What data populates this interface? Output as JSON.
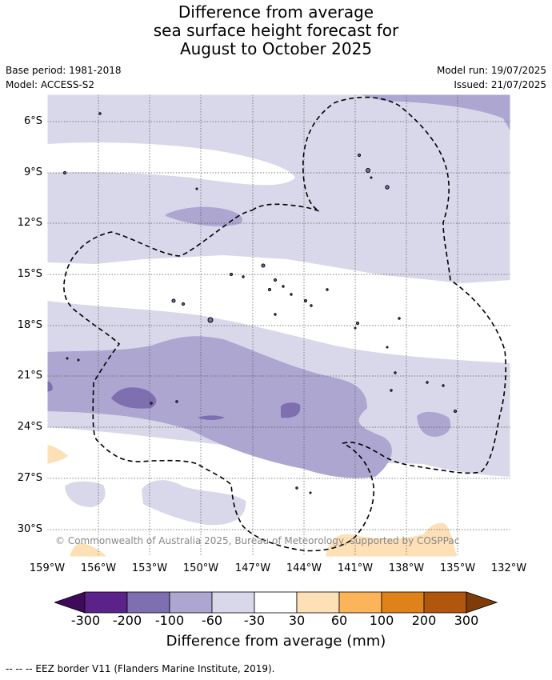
{
  "title": {
    "line1": "Difference from average",
    "line2": "sea surface height forecast for",
    "line3": "August to October 2025"
  },
  "meta": {
    "base_period": "Base period: 1981-2018",
    "model": "Model: ACCESS-S2",
    "model_run": "Model run: 19/07/2025",
    "issued": "Issued: 21/07/2025"
  },
  "map": {
    "lat_labels": [
      "6°S",
      "9°S",
      "12°S",
      "15°S",
      "18°S",
      "21°S",
      "24°S",
      "27°S",
      "30°S"
    ],
    "lon_labels": [
      "159°W",
      "156°W",
      "153°W",
      "150°W",
      "147°W",
      "144°W",
      "141°W",
      "138°W",
      "135°W",
      "132°W"
    ],
    "copyright": "© Commonwealth of Australia 2025, Bureau of Meteorology, supported by COSPPac",
    "gridlines": true
  },
  "colorbar": {
    "title": "Difference from average (mm)",
    "ticks": [
      "-300",
      "-200",
      "-100",
      "-60",
      "-30",
      "30",
      "60",
      "100",
      "200",
      "300"
    ],
    "colors": [
      "#3f0a5c",
      "#5b2389",
      "#7e6fb0",
      "#ada6d0",
      "#d8d8ea",
      "#ffffff",
      "#fde0b6",
      "#fbb45a",
      "#e0821a",
      "#b1570d",
      "#7f3b08"
    ]
  },
  "footnote": "--  --  -- EEZ border V11 (Flanders Marine Institute, 2019)."
}
